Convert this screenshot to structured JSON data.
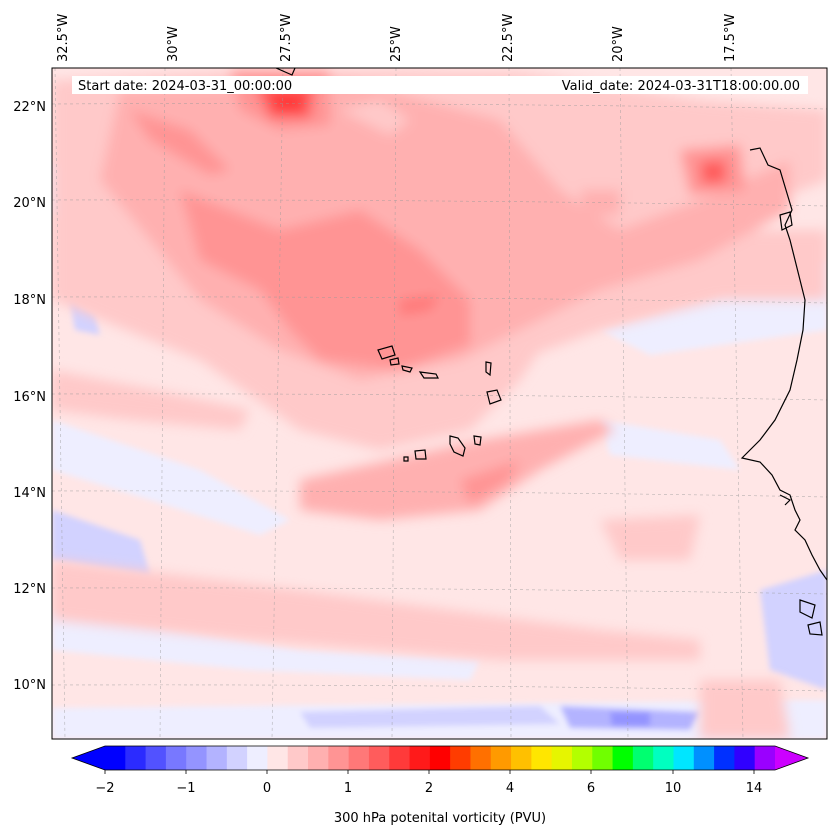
{
  "map": {
    "header": {
      "start_date": "Start date: 2024-03-31_00:00:00",
      "valid_date": "Valid_date: 2024-03-31T18:00:00.00"
    },
    "lon_labels": [
      "32.5°W",
      "30°W",
      "27.5°W",
      "25°W",
      "22.5°W",
      "20°W",
      "17.5°W"
    ],
    "lat_labels": [
      "22°N",
      "20°N",
      "18°N",
      "16°N",
      "14°N",
      "12°N",
      "10°N"
    ],
    "colorbar": {
      "label": "300 hPa potenital vorticity (PVU)",
      "ticks": [
        "−2",
        "−1",
        "0",
        "1",
        "2",
        "4",
        "6",
        "10",
        "14"
      ],
      "colors": [
        "#0000ff",
        "#2b2bff",
        "#5252ff",
        "#7878ff",
        "#9494ff",
        "#b3b3ff",
        "#d2d2ff",
        "#eeeeff",
        "#ffe6e6",
        "#ffc9c9",
        "#ffb0b0",
        "#ff9494",
        "#ff7878",
        "#ff5c5c",
        "#ff3a3a",
        "#ff1a1a",
        "#ff0000",
        "#ff3c00",
        "#ff7000",
        "#ff9a00",
        "#ffc000",
        "#ffe600",
        "#e6f500",
        "#b3ff00",
        "#70ff00",
        "#00ff00",
        "#00ff70",
        "#00ffc0",
        "#00e6ff",
        "#0090ff",
        "#0030ff",
        "#3000ff",
        "#9a00ff"
      ],
      "extend_low": "#0000ff",
      "extend_high": "#cc00ff"
    }
  }
}
